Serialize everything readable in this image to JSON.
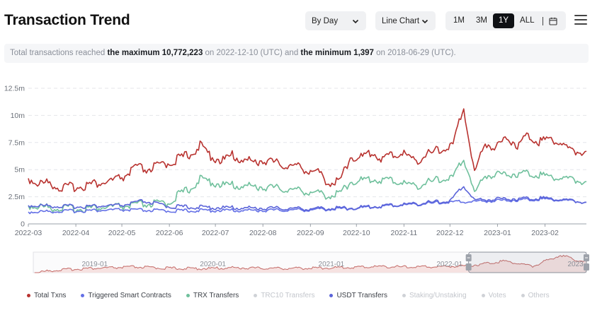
{
  "header": {
    "title": "Transaction Trend",
    "period_select": "By Day",
    "chart_type_select": "Line Chart",
    "ranges": [
      "1M",
      "3M",
      "1Y",
      "ALL"
    ],
    "active_range": "1Y"
  },
  "summary": {
    "prefix": "Total transactions reached ",
    "max_label": "the maximum 10,772,223",
    "max_on": " on 2022-12-10 (UTC) and ",
    "min_label": "the minimum 1,397",
    "min_on": " on 2018-06-29 (UTC)."
  },
  "colors": {
    "total": "#b8322f",
    "smart": "#6470e6",
    "trx": "#6fc09c",
    "usdt": "#5b64d9",
    "disabled": "#cfd2d7",
    "grid": "#e4e6ea",
    "axis_text": "#6b7079"
  },
  "chart_data": {
    "type": "line",
    "title": "",
    "xlabel": "",
    "ylabel": "",
    "ylim": [
      0,
      12500000
    ],
    "yticks": [
      0,
      2500000,
      5000000,
      7500000,
      10000000,
      12500000
    ],
    "ytick_labels": [
      "0",
      "2.5m",
      "5m",
      "7.5m",
      "10m",
      "12.5m"
    ],
    "grid": true,
    "legend_position": "bottom",
    "x_start": "2022-03-01",
    "x_end": "2023-02-28",
    "x_ticks": [
      "2022-03",
      "2022-04",
      "2022-05",
      "2022-06",
      "2022-07",
      "2022-08",
      "2022-09",
      "2022-10",
      "2022-11",
      "2022-12",
      "2023-01",
      "2023-02"
    ],
    "series": [
      {
        "name": "Total Txns",
        "color_key": "total",
        "enabled": true,
        "points": [
          [
            "2022-03-01",
            4200000
          ],
          [
            "2022-03-08",
            3700000
          ],
          [
            "2022-03-15",
            3800000
          ],
          [
            "2022-03-22",
            3300000
          ],
          [
            "2022-03-29",
            3400000
          ],
          [
            "2022-04-05",
            3500000
          ],
          [
            "2022-04-12",
            3700000
          ],
          [
            "2022-04-19",
            3800000
          ],
          [
            "2022-04-26",
            4000000
          ],
          [
            "2022-05-03",
            4400000
          ],
          [
            "2022-05-10",
            5200000
          ],
          [
            "2022-05-17",
            5000000
          ],
          [
            "2022-05-24",
            5300000
          ],
          [
            "2022-05-31",
            5600000
          ],
          [
            "2022-06-07",
            6000000
          ],
          [
            "2022-06-14",
            6400000
          ],
          [
            "2022-06-21",
            7200000
          ],
          [
            "2022-06-28",
            6300000
          ],
          [
            "2022-07-05",
            5800000
          ],
          [
            "2022-07-12",
            6300000
          ],
          [
            "2022-07-19",
            5900000
          ],
          [
            "2022-07-26",
            5700000
          ],
          [
            "2022-08-02",
            5900000
          ],
          [
            "2022-08-09",
            5600000
          ],
          [
            "2022-08-16",
            5400000
          ],
          [
            "2022-08-23",
            5300000
          ],
          [
            "2022-08-30",
            5000000
          ],
          [
            "2022-09-06",
            4700000
          ],
          [
            "2022-09-13",
            3800000
          ],
          [
            "2022-09-20",
            3900000
          ],
          [
            "2022-09-27",
            6200000
          ],
          [
            "2022-10-04",
            6100000
          ],
          [
            "2022-10-11",
            6600000
          ],
          [
            "2022-10-18",
            6000000
          ],
          [
            "2022-10-25",
            6400000
          ],
          [
            "2022-11-01",
            6500000
          ],
          [
            "2022-11-08",
            5800000
          ],
          [
            "2022-11-15",
            6300000
          ],
          [
            "2022-11-22",
            6700000
          ],
          [
            "2022-11-29",
            7000000
          ],
          [
            "2022-12-03",
            7300000
          ],
          [
            "2022-12-10",
            10772223
          ],
          [
            "2022-12-14",
            7200000
          ],
          [
            "2022-12-17",
            4700000
          ],
          [
            "2022-12-24",
            7500000
          ],
          [
            "2022-12-31",
            7000000
          ],
          [
            "2023-01-07",
            8000000
          ],
          [
            "2023-01-14",
            7300000
          ],
          [
            "2023-01-21",
            8200000
          ],
          [
            "2023-01-28",
            7600000
          ],
          [
            "2023-02-04",
            7900000
          ],
          [
            "2023-02-11",
            7500000
          ],
          [
            "2023-02-18",
            6700000
          ],
          [
            "2023-02-28",
            6700000
          ]
        ]
      },
      {
        "name": "Triggered Smart Contracts",
        "color_key": "smart",
        "enabled": true,
        "points": [
          [
            "2022-03-01",
            1100000
          ],
          [
            "2022-04-01",
            1200000
          ],
          [
            "2022-05-01",
            1300000
          ],
          [
            "2022-06-01",
            1200000
          ],
          [
            "2022-07-01",
            1250000
          ],
          [
            "2022-08-01",
            1250000
          ],
          [
            "2022-09-01",
            1300000
          ],
          [
            "2022-10-01",
            1450000
          ],
          [
            "2022-11-01",
            1750000
          ],
          [
            "2022-12-01",
            2000000
          ],
          [
            "2023-01-01",
            2150000
          ],
          [
            "2023-02-01",
            2300000
          ],
          [
            "2023-02-28",
            2000000
          ]
        ]
      },
      {
        "name": "TRX Transfers",
        "color_key": "trx",
        "enabled": true,
        "points": [
          [
            "2022-03-01",
            1700000
          ],
          [
            "2022-03-15",
            1500000
          ],
          [
            "2022-04-01",
            1400000
          ],
          [
            "2022-04-15",
            1500000
          ],
          [
            "2022-05-01",
            1600000
          ],
          [
            "2022-05-15",
            1800000
          ],
          [
            "2022-05-31",
            1900000
          ],
          [
            "2022-06-07",
            2700000
          ],
          [
            "2022-06-14",
            3200000
          ],
          [
            "2022-06-21",
            4100000
          ],
          [
            "2022-06-28",
            3900000
          ],
          [
            "2022-07-05",
            3600000
          ],
          [
            "2022-07-19",
            3500000
          ],
          [
            "2022-08-02",
            3400000
          ],
          [
            "2022-08-16",
            3200000
          ],
          [
            "2022-08-30",
            3000000
          ],
          [
            "2022-09-13",
            2600000
          ],
          [
            "2022-09-20",
            2800000
          ],
          [
            "2022-09-27",
            3900000
          ],
          [
            "2022-10-11",
            4100000
          ],
          [
            "2022-10-25",
            4000000
          ],
          [
            "2022-11-08",
            3500000
          ],
          [
            "2022-11-22",
            4000000
          ],
          [
            "2022-12-03",
            4300000
          ],
          [
            "2022-12-10",
            6000000
          ],
          [
            "2022-12-14",
            4400000
          ],
          [
            "2022-12-17",
            2800000
          ],
          [
            "2022-12-24",
            4500000
          ],
          [
            "2023-01-07",
            4600000
          ],
          [
            "2023-01-21",
            4700000
          ],
          [
            "2023-02-04",
            4400000
          ],
          [
            "2023-02-18",
            4100000
          ],
          [
            "2023-02-28",
            3900000
          ]
        ]
      },
      {
        "name": "TRC10 Transfers",
        "color_key": "disabled",
        "enabled": false,
        "points": []
      },
      {
        "name": "USDT Transfers",
        "color_key": "usdt",
        "enabled": true,
        "points": [
          [
            "2022-03-01",
            1700000
          ],
          [
            "2022-04-01",
            1600000
          ],
          [
            "2022-05-01",
            1700000
          ],
          [
            "2022-05-15",
            2100000
          ],
          [
            "2022-06-01",
            1600000
          ],
          [
            "2022-07-01",
            1500000
          ],
          [
            "2022-08-01",
            1450000
          ],
          [
            "2022-09-01",
            1400000
          ],
          [
            "2022-10-01",
            1500000
          ],
          [
            "2022-11-01",
            1800000
          ],
          [
            "2022-12-01",
            2100000
          ],
          [
            "2022-12-10",
            3500000
          ],
          [
            "2022-12-17",
            2200000
          ],
          [
            "2023-01-01",
            2300000
          ],
          [
            "2023-02-01",
            2400000
          ],
          [
            "2023-02-28",
            2000000
          ]
        ]
      },
      {
        "name": "Staking/Unstaking",
        "color_key": "disabled",
        "enabled": false,
        "points": []
      },
      {
        "name": "Votes",
        "color_key": "disabled",
        "enabled": false,
        "points": []
      },
      {
        "name": "Others",
        "color_key": "disabled",
        "enabled": false,
        "points": []
      }
    ],
    "overview": {
      "tick_labels": [
        "2019-01",
        "2020-01",
        "2021-01",
        "2022-01",
        "2023-"
      ],
      "x_start": "2018-06-25",
      "x_end": "2023-02-28",
      "selected_start": "2022-03-01",
      "selected_end": "2023-02-28",
      "points": [
        [
          "2018-06-29",
          1397
        ],
        [
          "2018-09-01",
          1500000
        ],
        [
          "2018-12-01",
          2500000
        ],
        [
          "2019-03-01",
          3000000
        ],
        [
          "2019-05-01",
          3500000
        ],
        [
          "2019-08-01",
          2800000
        ],
        [
          "2019-11-01",
          2500000
        ],
        [
          "2020-01-01",
          2600000
        ],
        [
          "2020-03-01",
          3000000
        ],
        [
          "2020-06-01",
          2700000
        ],
        [
          "2020-09-01",
          2600000
        ],
        [
          "2020-12-01",
          2900000
        ],
        [
          "2021-03-01",
          3200000
        ],
        [
          "2021-06-01",
          3800000
        ],
        [
          "2021-09-01",
          3400000
        ],
        [
          "2021-12-01",
          3700000
        ],
        [
          "2022-03-01",
          4200000
        ],
        [
          "2022-06-20",
          7200000
        ],
        [
          "2022-09-15",
          3900000
        ],
        [
          "2022-12-10",
          10772223
        ],
        [
          "2023-01-20",
          8000000
        ],
        [
          "2023-02-28",
          6700000
        ]
      ]
    }
  }
}
